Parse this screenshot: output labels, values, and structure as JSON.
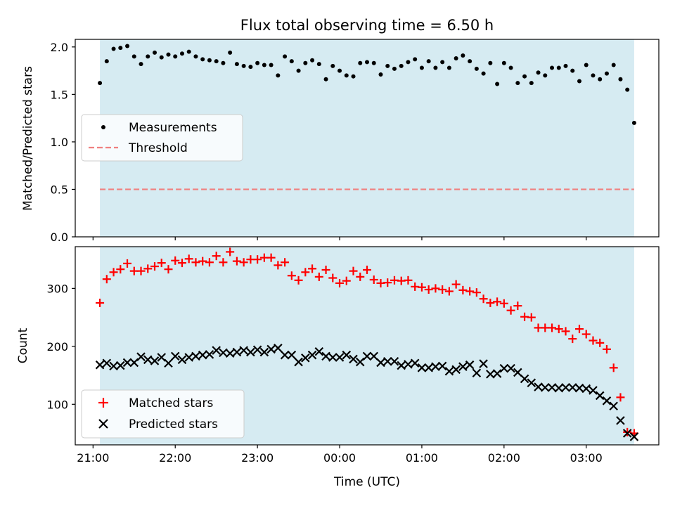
{
  "chart_data": [
    {
      "type": "scatter",
      "title": "Flux total observing time = 6.50 h",
      "ylabel": "Matched/Predicted stars",
      "xlabel": "",
      "ylim": [
        0,
        2.08
      ],
      "yticks": [
        0.0,
        0.5,
        1.0,
        1.5,
        2.0
      ],
      "ytick_labels": [
        "0.0",
        "0.5",
        "1.0",
        "1.5",
        "2.0"
      ],
      "shaded_span": [
        "21:05",
        "03:35"
      ],
      "shade_color": "#add8e6",
      "legend": {
        "placement": "center-left",
        "entries": [
          "Measurements",
          "Threshold"
        ]
      },
      "series": [
        {
          "name": "Measurements",
          "color": "#000000",
          "marker": "dot",
          "x": [
            "21:05",
            "21:10",
            "21:15",
            "21:20",
            "21:25",
            "21:30",
            "21:35",
            "21:40",
            "21:45",
            "21:50",
            "21:55",
            "22:00",
            "22:05",
            "22:10",
            "22:15",
            "22:20",
            "22:25",
            "22:30",
            "22:35",
            "22:40",
            "22:45",
            "22:50",
            "22:55",
            "23:00",
            "23:05",
            "23:10",
            "23:15",
            "23:20",
            "23:25",
            "23:30",
            "23:35",
            "23:40",
            "23:45",
            "23:50",
            "23:55",
            "00:00",
            "00:05",
            "00:10",
            "00:15",
            "00:20",
            "00:25",
            "00:30",
            "00:35",
            "00:40",
            "00:45",
            "00:50",
            "00:55",
            "01:00",
            "01:05",
            "01:10",
            "01:15",
            "01:20",
            "01:25",
            "01:30",
            "01:35",
            "01:40",
            "01:45",
            "01:50",
            "01:55",
            "02:00",
            "02:05",
            "02:10",
            "02:15",
            "02:20",
            "02:25",
            "02:30",
            "02:35",
            "02:40",
            "02:45",
            "02:50",
            "02:55",
            "03:00",
            "03:05",
            "03:10",
            "03:15",
            "03:20",
            "03:25",
            "03:30",
            "03:35"
          ],
          "y": [
            1.62,
            1.85,
            1.98,
            1.99,
            2.01,
            1.9,
            1.82,
            1.9,
            1.94,
            1.89,
            1.92,
            1.9,
            1.93,
            1.95,
            1.9,
            1.87,
            1.86,
            1.85,
            1.83,
            1.94,
            1.82,
            1.8,
            1.79,
            1.83,
            1.81,
            1.81,
            1.7,
            1.9,
            1.85,
            1.75,
            1.83,
            1.86,
            1.82,
            1.66,
            1.8,
            1.75,
            1.7,
            1.69,
            1.83,
            1.84,
            1.83,
            1.71,
            1.8,
            1.77,
            1.8,
            1.84,
            1.87,
            1.78,
            1.85,
            1.78,
            1.84,
            1.78,
            1.88,
            1.91,
            1.85,
            1.77,
            1.72,
            1.83,
            1.61,
            1.83,
            1.78,
            1.62,
            1.69,
            1.62,
            1.73,
            1.7,
            1.78,
            1.78,
            1.8,
            1.75,
            1.64,
            1.81,
            1.7,
            1.66,
            1.72,
            1.81,
            1.66,
            1.55,
            1.2
          ]
        },
        {
          "name": "Threshold",
          "color": "#f08080",
          "style": "dashed",
          "x": [
            "21:05",
            "03:35"
          ],
          "y": [
            0.5,
            0.5
          ]
        }
      ]
    },
    {
      "type": "scatter",
      "xlabel": "Time (UTC)",
      "ylabel": "Count",
      "ylim": [
        30,
        372
      ],
      "yticks": [
        100,
        200,
        300
      ],
      "ytick_labels": [
        "100",
        "200",
        "300"
      ],
      "xlim": [
        "20:47",
        "03:53"
      ],
      "xticks": [
        "21:00",
        "22:00",
        "23:00",
        "00:00",
        "01:00",
        "02:00",
        "03:00"
      ],
      "xtick_labels": [
        "21:00",
        "22:00",
        "23:00",
        "00:00",
        "01:00",
        "02:00",
        "03:00"
      ],
      "shaded_span": [
        "21:05",
        "03:35"
      ],
      "shade_color": "#add8e6",
      "legend": {
        "placement": "bottom-left",
        "entries": [
          "Matched stars",
          "Predicted stars"
        ]
      },
      "series": [
        {
          "name": "Matched stars",
          "color": "#ff0000",
          "marker": "plus",
          "x": [
            "21:05",
            "21:10",
            "21:15",
            "21:20",
            "21:25",
            "21:30",
            "21:35",
            "21:40",
            "21:45",
            "21:50",
            "21:55",
            "22:00",
            "22:05",
            "22:10",
            "22:15",
            "22:20",
            "22:25",
            "22:30",
            "22:35",
            "22:40",
            "22:45",
            "22:50",
            "22:55",
            "23:00",
            "23:05",
            "23:10",
            "23:15",
            "23:20",
            "23:25",
            "23:30",
            "23:35",
            "23:40",
            "23:45",
            "23:50",
            "23:55",
            "00:00",
            "00:05",
            "00:10",
            "00:15",
            "00:20",
            "00:25",
            "00:30",
            "00:35",
            "00:40",
            "00:45",
            "00:50",
            "00:55",
            "01:00",
            "01:05",
            "01:10",
            "01:15",
            "01:20",
            "01:25",
            "01:30",
            "01:35",
            "01:40",
            "01:45",
            "01:50",
            "01:55",
            "02:00",
            "02:05",
            "02:10",
            "02:15",
            "02:20",
            "02:25",
            "02:30",
            "02:35",
            "02:40",
            "02:45",
            "02:50",
            "02:55",
            "03:00",
            "03:05",
            "03:10",
            "03:15",
            "03:20",
            "03:25",
            "03:30",
            "03:35"
          ],
          "y": [
            275,
            316,
            328,
            333,
            343,
            330,
            330,
            334,
            338,
            344,
            333,
            348,
            344,
            351,
            345,
            347,
            345,
            356,
            345,
            363,
            347,
            345,
            350,
            350,
            353,
            353,
            340,
            345,
            322,
            314,
            328,
            334,
            320,
            332,
            318,
            309,
            313,
            330,
            320,
            332,
            315,
            309,
            310,
            314,
            313,
            314,
            303,
            302,
            298,
            300,
            298,
            295,
            307,
            297,
            295,
            293,
            282,
            275,
            277,
            274,
            262,
            270,
            251,
            250,
            232,
            232,
            232,
            230,
            226,
            213,
            230,
            221,
            210,
            206,
            195,
            163,
            112,
            52,
            50
          ]
        },
        {
          "name": "Predicted stars",
          "color": "#000000",
          "marker": "x",
          "x": [
            "21:05",
            "21:10",
            "21:15",
            "21:20",
            "21:25",
            "21:30",
            "21:35",
            "21:40",
            "21:45",
            "21:50",
            "21:55",
            "22:00",
            "22:05",
            "22:10",
            "22:15",
            "22:20",
            "22:25",
            "22:30",
            "22:35",
            "22:40",
            "22:45",
            "22:50",
            "22:55",
            "23:00",
            "23:05",
            "23:10",
            "23:15",
            "23:20",
            "23:25",
            "23:30",
            "23:35",
            "23:40",
            "23:45",
            "23:50",
            "23:55",
            "00:00",
            "00:05",
            "00:10",
            "00:15",
            "00:20",
            "00:25",
            "00:30",
            "00:35",
            "00:40",
            "00:45",
            "00:50",
            "00:55",
            "01:00",
            "01:05",
            "01:10",
            "01:15",
            "01:20",
            "01:25",
            "01:30",
            "01:35",
            "01:40",
            "01:45",
            "01:50",
            "01:55",
            "02:00",
            "02:05",
            "02:10",
            "02:15",
            "02:20",
            "02:25",
            "02:30",
            "02:35",
            "02:40",
            "02:45",
            "02:50",
            "02:55",
            "03:00",
            "03:05",
            "03:10",
            "03:15",
            "03:20",
            "03:25",
            "03:30",
            "03:35"
          ],
          "y": [
            168,
            171,
            166,
            167,
            172,
            172,
            182,
            177,
            175,
            181,
            171,
            183,
            177,
            181,
            183,
            185,
            186,
            193,
            189,
            188,
            190,
            193,
            190,
            194,
            190,
            195,
            197,
            185,
            185,
            173,
            180,
            185,
            191,
            183,
            181,
            181,
            185,
            178,
            173,
            183,
            183,
            172,
            174,
            174,
            167,
            169,
            171,
            163,
            163,
            165,
            166,
            157,
            160,
            165,
            168,
            154,
            170,
            152,
            153,
            162,
            162,
            155,
            144,
            137,
            130,
            129,
            129,
            128,
            129,
            129,
            128,
            127,
            124,
            115,
            106,
            97,
            72,
            50,
            44
          ]
        }
      ]
    }
  ]
}
